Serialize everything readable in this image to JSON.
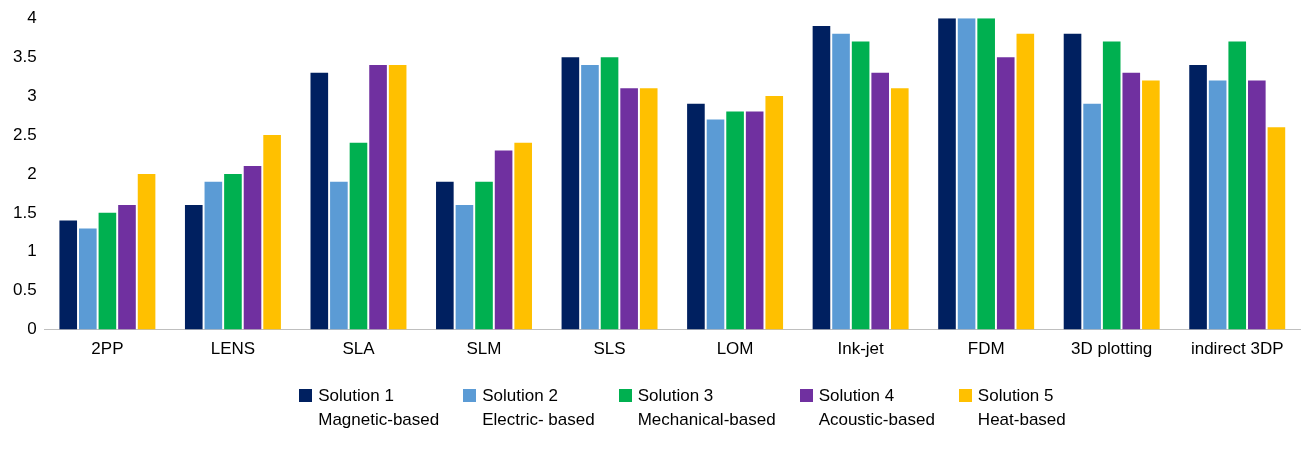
{
  "chart_data": {
    "type": "bar",
    "categories": [
      "2PP",
      "LENS",
      "SLA",
      "SLM",
      "SLS",
      "LOM",
      "Ink-jet",
      "FDM",
      "3D plotting",
      "indirect 3DP"
    ],
    "series": [
      {
        "name": "Solution 1\nMagnetic-based",
        "color": "#002060",
        "values": [
          1.4,
          1.6,
          3.3,
          1.9,
          3.5,
          2.9,
          3.9,
          4,
          3.8,
          3.4
        ]
      },
      {
        "name": "Solution 2\nElectric- based",
        "color": "#5b9bd5",
        "values": [
          1.3,
          1.9,
          1.9,
          1.6,
          3.4,
          2.7,
          3.8,
          4,
          2.9,
          3.2
        ]
      },
      {
        "name": "Solution 3\nMechanical-based",
        "color": "#00b050",
        "values": [
          1.5,
          2.0,
          2.4,
          1.9,
          3.5,
          2.8,
          3.7,
          4,
          3.7,
          3.7
        ]
      },
      {
        "name": "Solution 4\nAcoustic-based",
        "color": "#7030a0",
        "values": [
          1.6,
          2.1,
          3.4,
          2.3,
          3.1,
          2.8,
          3.3,
          3.5,
          3.3,
          3.2
        ]
      },
      {
        "name": "Solution 5\nHeat-based",
        "color": "#ffc000",
        "values": [
          2.0,
          2.5,
          3.4,
          2.4,
          3.1,
          3.0,
          3.1,
          3.8,
          3.2,
          2.6
        ]
      }
    ],
    "ylim": [
      0,
      4
    ],
    "yticks": [
      0,
      0.5,
      1,
      1.5,
      2,
      2.5,
      3,
      3.5,
      4
    ],
    "grid": false,
    "legend": "bottom"
  }
}
